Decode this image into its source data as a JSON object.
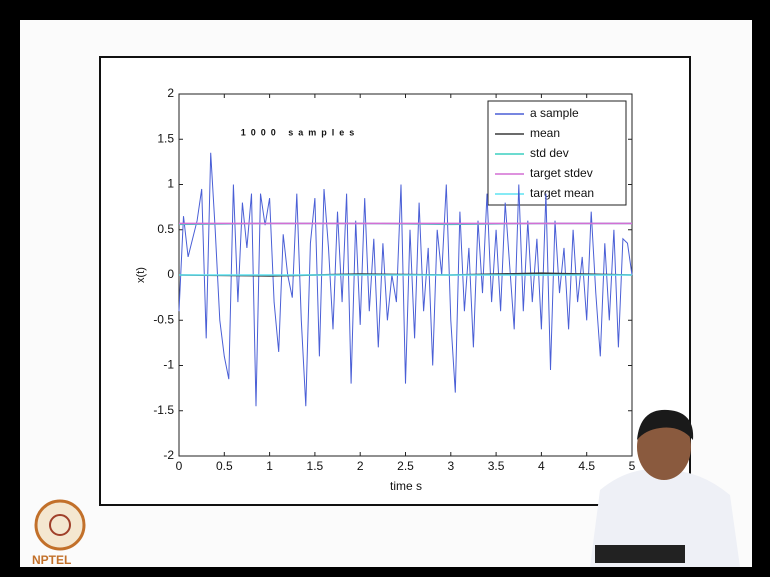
{
  "chart_data": {
    "type": "line",
    "annotation": "1000 samples",
    "xlabel": "time s",
    "ylabel": "x(t)",
    "xlim": [
      0,
      5
    ],
    "ylim": [
      -2,
      2
    ],
    "xticks": [
      0,
      0.5,
      1,
      1.5,
      2,
      2.5,
      3,
      3.5,
      4,
      4.5,
      5
    ],
    "yticks": [
      -2,
      -1.5,
      -1,
      -0.5,
      0,
      0.5,
      1,
      1.5,
      2
    ],
    "grid": false,
    "legend": "upper right",
    "series": [
      {
        "name": "a sample",
        "color": "#4a5fd6",
        "x": [
          0,
          0.05,
          0.1,
          0.15,
          0.2,
          0.25,
          0.3,
          0.35,
          0.4,
          0.45,
          0.5,
          0.55,
          0.6,
          0.65,
          0.7,
          0.75,
          0.8,
          0.85,
          0.9,
          0.95,
          1,
          1.05,
          1.1,
          1.15,
          1.2,
          1.25,
          1.3,
          1.35,
          1.4,
          1.45,
          1.5,
          1.55,
          1.6,
          1.65,
          1.7,
          1.75,
          1.8,
          1.85,
          1.9,
          1.95,
          2,
          2.05,
          2.1,
          2.15,
          2.2,
          2.25,
          2.3,
          2.35,
          2.4,
          2.45,
          2.5,
          2.55,
          2.6,
          2.65,
          2.7,
          2.75,
          2.8,
          2.85,
          2.9,
          2.95,
          3,
          3.05,
          3.1,
          3.15,
          3.2,
          3.25,
          3.3,
          3.35,
          3.4,
          3.45,
          3.5,
          3.55,
          3.6,
          3.65,
          3.7,
          3.75,
          3.8,
          3.85,
          3.9,
          3.95,
          4,
          4.05,
          4.1,
          4.15,
          4.2,
          4.25,
          4.3,
          4.35,
          4.4,
          4.45,
          4.5,
          4.55,
          4.6,
          4.65,
          4.7,
          4.75,
          4.8,
          4.85,
          4.9,
          4.95,
          5
        ],
        "values": [
          -0.4,
          0.65,
          0.2,
          0.4,
          0.6,
          0.95,
          -0.7,
          1.35,
          0.5,
          -0.5,
          -0.9,
          -1.15,
          1.0,
          -0.3,
          0.8,
          0.3,
          0.9,
          -1.45,
          0.9,
          0.55,
          0.85,
          -0.3,
          -0.85,
          0.45,
          0.0,
          -0.25,
          0.9,
          -0.5,
          -1.45,
          0.35,
          0.85,
          -0.9,
          0.95,
          0.3,
          -0.6,
          0.7,
          -0.3,
          0.9,
          -1.2,
          0.6,
          -0.55,
          0.85,
          -0.4,
          0.4,
          -0.8,
          0.35,
          -0.5,
          0.0,
          -0.3,
          1.0,
          -1.2,
          0.5,
          -0.7,
          0.8,
          -0.4,
          0.3,
          -1.0,
          0.5,
          0.0,
          1.0,
          -0.5,
          -1.3,
          0.7,
          -0.4,
          0.3,
          -0.8,
          0.6,
          -0.2,
          0.9,
          -0.3,
          0.5,
          -0.4,
          0.8,
          0.1,
          -0.6,
          1.0,
          -0.4,
          0.6,
          -0.3,
          0.4,
          -0.6,
          0.9,
          -1.05,
          0.6,
          -0.2,
          0.3,
          -0.6,
          0.5,
          -0.3,
          0.2,
          -0.5,
          0.7,
          -0.2,
          -0.9,
          0.35,
          -0.5,
          0.5,
          -0.8,
          0.4,
          0.35,
          0.0
        ]
      },
      {
        "name": "mean",
        "color": "#3a3a3a",
        "x": [
          0,
          1,
          2,
          3,
          4,
          5
        ],
        "values": [
          0.0,
          -0.01,
          0.01,
          0.0,
          0.02,
          0.0
        ]
      },
      {
        "name": "std dev",
        "color": "#3ccfc0",
        "x": [
          0,
          1,
          2,
          3,
          4,
          5
        ],
        "values": [
          0.56,
          0.57,
          0.57,
          0.56,
          0.57,
          0.57
        ]
      },
      {
        "name": "target stdev",
        "color": "#d46fd4",
        "x": [
          0,
          5
        ],
        "values": [
          0.57,
          0.57
        ]
      },
      {
        "name": "target mean",
        "color": "#5fe3f2",
        "x": [
          0,
          5
        ],
        "values": [
          0,
          0
        ]
      }
    ]
  },
  "logo": {
    "text": "NPTEL"
  }
}
